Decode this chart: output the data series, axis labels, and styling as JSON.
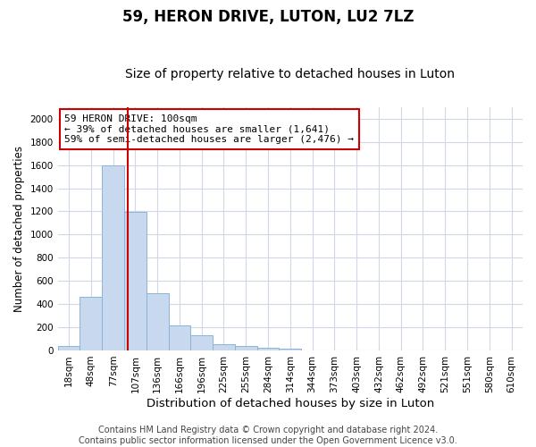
{
  "title": "59, HERON DRIVE, LUTON, LU2 7LZ",
  "subtitle": "Size of property relative to detached houses in Luton",
  "xlabel": "Distribution of detached houses by size in Luton",
  "ylabel": "Number of detached properties",
  "bar_labels": [
    "18sqm",
    "48sqm",
    "77sqm",
    "107sqm",
    "136sqm",
    "166sqm",
    "196sqm",
    "225sqm",
    "255sqm",
    "284sqm",
    "314sqm",
    "344sqm",
    "373sqm",
    "403sqm",
    "432sqm",
    "462sqm",
    "492sqm",
    "521sqm",
    "551sqm",
    "580sqm",
    "610sqm"
  ],
  "bar_values": [
    35,
    460,
    1600,
    1195,
    490,
    215,
    130,
    50,
    38,
    22,
    14,
    0,
    0,
    0,
    0,
    0,
    0,
    0,
    0,
    0,
    0
  ],
  "bar_color": "#c8d8ee",
  "bar_edgecolor": "#8ab4d8",
  "property_line_x": 2.68,
  "annotation_text": "59 HERON DRIVE: 100sqm\n← 39% of detached houses are smaller (1,641)\n59% of semi-detached houses are larger (2,476) →",
  "annotation_box_color": "#ffffff",
  "annotation_box_edgecolor": "#cc0000",
  "vline_color": "#cc0000",
  "ylim": [
    0,
    2100
  ],
  "yticks": [
    0,
    200,
    400,
    600,
    800,
    1000,
    1200,
    1400,
    1600,
    1800,
    2000
  ],
  "grid_color": "#d0d8e8",
  "background_color": "#ffffff",
  "footer_text": "Contains HM Land Registry data © Crown copyright and database right 2024.\nContains public sector information licensed under the Open Government Licence v3.0.",
  "title_fontsize": 12,
  "subtitle_fontsize": 10,
  "xlabel_fontsize": 9.5,
  "ylabel_fontsize": 8.5,
  "footer_fontsize": 7,
  "tick_fontsize": 7.5,
  "annot_fontsize": 8
}
